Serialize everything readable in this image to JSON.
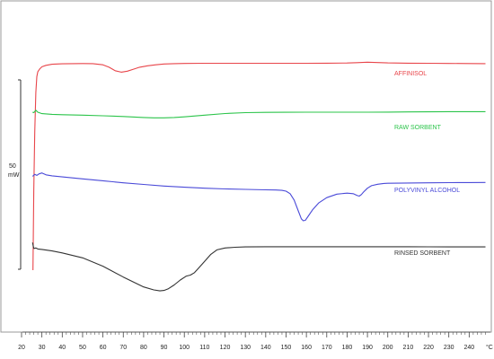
{
  "chart_data": {
    "type": "line",
    "title": "",
    "xlabel": "",
    "ylabel": "",
    "x_unit": "°C",
    "xlim": [
      20,
      250
    ],
    "x_ticks": [
      20,
      30,
      40,
      50,
      60,
      70,
      80,
      90,
      100,
      110,
      120,
      130,
      140,
      150,
      160,
      170,
      180,
      190,
      200,
      210,
      220,
      230,
      240
    ],
    "scale_bar": {
      "value": "50",
      "unit": "mW"
    },
    "grid": false,
    "series": [
      {
        "name": "AFFINISOL",
        "color": "#e8454a",
        "x": [
          25.6,
          26.0,
          26.5,
          27.0,
          27.5,
          28.0,
          29.0,
          30.0,
          32.0,
          35.0,
          40.0,
          45.0,
          50.0,
          55.0,
          60.0,
          63.0,
          66.0,
          69.0,
          72.0,
          75.0,
          78.0,
          82.0,
          86.0,
          90.0,
          95.0,
          100.0,
          110.0,
          120.0,
          130.0,
          140.0,
          150.0,
          160.0,
          170.0,
          180.0,
          185.0,
          190.0,
          195.0,
          200.0,
          210.0,
          220.0,
          230.0,
          240.0,
          248.0
        ],
        "y": [
          -80.0,
          0.0,
          60.0,
          100.0,
          116.0,
          121.0,
          124.0,
          126.0,
          127.5,
          128.5,
          129.0,
          129.2,
          129.3,
          129.2,
          128.0,
          125.5,
          122.0,
          120.5,
          121.5,
          123.5,
          125.5,
          127.0,
          128.0,
          128.8,
          129.2,
          129.4,
          129.5,
          129.5,
          129.5,
          129.5,
          129.5,
          129.5,
          129.6,
          129.8,
          130.2,
          130.6,
          130.3,
          129.9,
          129.6,
          129.5,
          129.4,
          129.3,
          129.2
        ]
      },
      {
        "name": "RAW SORBENT",
        "color": "#2bc44a",
        "x": [
          25.4,
          26.0,
          27.0,
          28.0,
          30.0,
          35.0,
          40.0,
          50.0,
          60.0,
          70.0,
          80.0,
          85.0,
          90.0,
          95.0,
          100.0,
          110.0,
          120.0,
          130.0,
          140.0,
          150.0,
          160.0,
          170.0,
          180.0,
          190.0,
          200.0,
          210.0,
          220.0,
          230.0,
          240.0,
          248.0
        ],
        "y": [
          80.0,
          79.5,
          82.0,
          80.0,
          78.5,
          77.8,
          77.5,
          77.0,
          76.4,
          75.6,
          74.6,
          74.3,
          74.3,
          74.6,
          75.3,
          77.0,
          78.6,
          79.5,
          79.8,
          79.9,
          80.0,
          80.0,
          80.0,
          80.0,
          80.1,
          80.3,
          80.4,
          80.5,
          80.5,
          80.5
        ]
      },
      {
        "name": "POLYVINYL ALCOHOL",
        "color": "#4a4ad8",
        "x": [
          25.4,
          26.5,
          27.5,
          28.5,
          30.0,
          32.0,
          35.0,
          40.0,
          50.0,
          60.0,
          70.0,
          80.0,
          90.0,
          100.0,
          110.0,
          120.0,
          130.0,
          140.0,
          145.0,
          148.0,
          150.0,
          152.0,
          154.0,
          156.0,
          157.5,
          158.5,
          159.5,
          161.0,
          163.0,
          166.0,
          170.0,
          175.0,
          180.0,
          183.0,
          185.0,
          186.0,
          187.0,
          188.0,
          190.0,
          192.0,
          195.0,
          198.0,
          200.0,
          210.0,
          220.0,
          230.0,
          240.0,
          248.0
        ],
        "y": [
          15.0,
          17.0,
          16.0,
          17.5,
          18.5,
          16.5,
          15.5,
          14.5,
          12.5,
          10.5,
          8.5,
          6.8,
          5.2,
          4.0,
          3.0,
          2.3,
          1.8,
          1.4,
          1.2,
          0.8,
          0.0,
          -2.5,
          -9.0,
          -20.0,
          -28.0,
          -30.0,
          -29.5,
          -25.0,
          -19.0,
          -12.0,
          -6.5,
          -3.0,
          -2.0,
          -2.5,
          -4.5,
          -5.0,
          -3.5,
          -1.0,
          3.0,
          5.5,
          7.0,
          7.8,
          8.0,
          8.3,
          8.5,
          8.6,
          8.7,
          8.8
        ]
      },
      {
        "name": "RINSED SORBENT",
        "color": "#333333",
        "x": [
          25.4,
          26.0,
          27.0,
          28.0,
          30.0,
          35.0,
          40.0,
          50.0,
          60.0,
          70.0,
          80.0,
          85.0,
          88.0,
          90.0,
          92.0,
          95.0,
          98.0,
          101.0,
          103.0,
          105.0,
          107.0,
          110.0,
          113.0,
          116.0,
          120.0,
          125.0,
          130.0,
          140.0,
          150.0,
          160.0,
          170.0,
          180.0,
          190.0,
          200.0,
          210.0,
          220.0,
          230.0,
          240.0,
          248.0
        ],
        "y": [
          -52.0,
          -58.0,
          -57.5,
          -58.5,
          -59.0,
          -60.5,
          -62.5,
          -67.5,
          -76.0,
          -87.0,
          -97.0,
          -100.0,
          -101.0,
          -100.5,
          -99.0,
          -95.0,
          -90.0,
          -86.0,
          -85.0,
          -82.5,
          -78.0,
          -71.0,
          -64.0,
          -59.5,
          -57.5,
          -56.8,
          -56.5,
          -56.3,
          -56.3,
          -56.3,
          -56.3,
          -56.3,
          -56.3,
          -56.3,
          -56.3,
          -56.4,
          -56.5,
          -56.5,
          -56.5
        ]
      }
    ]
  }
}
